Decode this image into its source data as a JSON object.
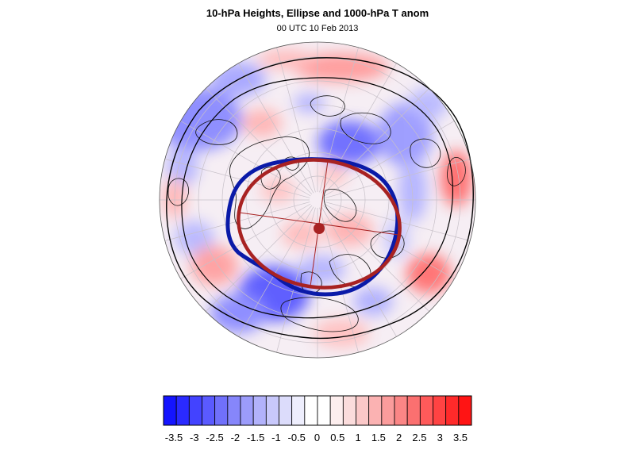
{
  "header": {
    "title": "10-hPa Heights, Ellipse and 1000-hPa T anom",
    "subtitle": "00 UTC 10 Feb 2013"
  },
  "map": {
    "projection": "polar stereographic (north pole)",
    "field": "1000-hPa temperature anomaly (shaded)",
    "contour_colors": {
      "height_contour_outer": "#000000",
      "height_contour_inner": "#000000",
      "vortex_edge_contour": "#0a1aa8",
      "fitted_ellipse": "#a82222",
      "ellipse_center": "#a82222"
    },
    "gridlines": true,
    "coastlines": true
  },
  "colorbar": {
    "tick_labels": [
      "-3.5",
      "-3",
      "-2.5",
      "-2",
      "-1.5",
      "-1",
      "-0.5",
      "0",
      "0.5",
      "1",
      "1.5",
      "2",
      "2.5",
      "3",
      "3.5"
    ],
    "colors": [
      "#1414ff",
      "#2a2aff",
      "#4343ff",
      "#5a5aff",
      "#7070fb",
      "#8686fb",
      "#9c9cfb",
      "#b2b2fb",
      "#c8c8fb",
      "#dcdcfb",
      "#eeeefd",
      "#ffffff",
      "#ffffff",
      "#fdeeee",
      "#fbdcdc",
      "#fbc8c8",
      "#fbb2b2",
      "#fb9c9c",
      "#fb8686",
      "#fb7070",
      "#ff5a5a",
      "#ff4343",
      "#ff2a2a",
      "#ff1414"
    ]
  }
}
